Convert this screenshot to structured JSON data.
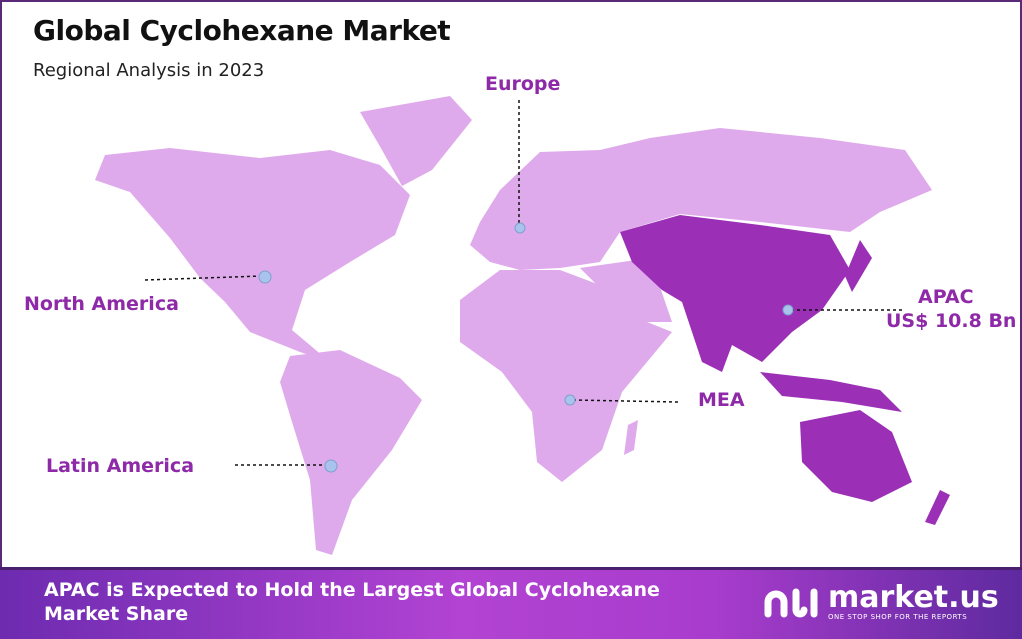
{
  "header": {
    "title": "Global Cyclohexane Market",
    "subtitle": "Regional Analysis in 2023"
  },
  "regions": [
    {
      "name": "Europe",
      "highlighted": false
    },
    {
      "name": "North America",
      "highlighted": false
    },
    {
      "name": "APAC",
      "value": "US$ 10.8 Bn",
      "highlighted": true
    },
    {
      "name": "MEA",
      "highlighted": false
    },
    {
      "name": "Latin America",
      "highlighted": false
    }
  ],
  "colors": {
    "map_base": "#dfaaeb",
    "map_highlight": "#9b2fb6",
    "label": "#8e2aa8",
    "marker": "#a9c4ec"
  },
  "footer": {
    "text": "APAC is Expected to Hold the Largest Global Cyclohexane Market Share"
  },
  "logo": {
    "name": "market.us",
    "tagline": "ONE STOP SHOP FOR THE REPORTS"
  }
}
